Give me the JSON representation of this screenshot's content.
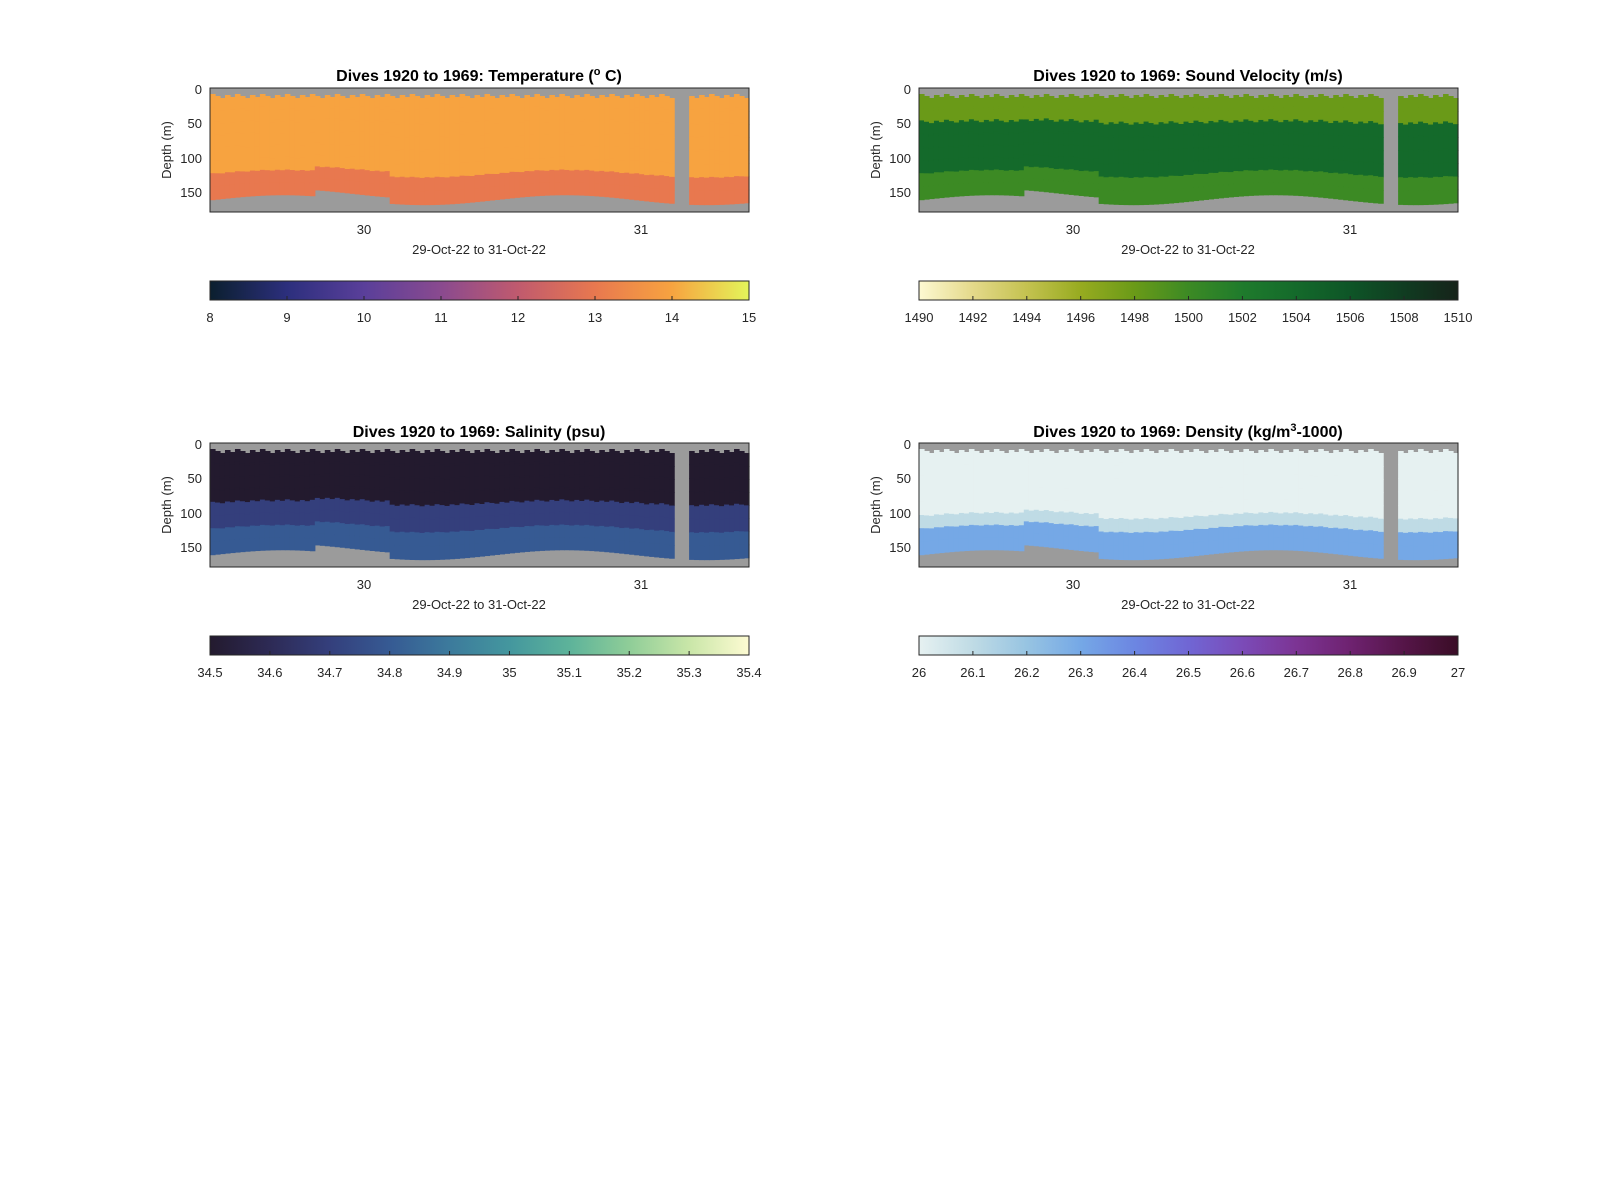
{
  "figure": {
    "panels": [
      {
        "id": "temperature",
        "title": "Dives 1920 to 1969: Temperature (",
        "title_sup": "o",
        "title_tail": " C)",
        "ylabel": "Depth (m)",
        "xlabel": "29-Oct-22 to 31-Oct-22",
        "xticks": [
          "30",
          "31"
        ],
        "yticks": [
          "0",
          "50",
          "100",
          "150"
        ],
        "colorbar_ticks": [
          "8",
          "9",
          "10",
          "11",
          "12",
          "13",
          "14",
          "15"
        ],
        "colormap": [
          "#0b1f2e",
          "#2c2f7d",
          "#5a3f9a",
          "#8a4a8f",
          "#c05a6e",
          "#e8784f",
          "#f7a340",
          "#e3f55a"
        ],
        "nan_color": "#9b9b9b",
        "fill_color": "#f59d43"
      },
      {
        "id": "sound-velocity",
        "title": "Dives 1920 to 1969: Sound Velocity (m/s)",
        "title_sup": "",
        "title_tail": "",
        "ylabel": "Depth (m)",
        "xlabel": "29-Oct-22 to 31-Oct-22",
        "xticks": [
          "30",
          "31"
        ],
        "yticks": [
          "0",
          "50",
          "100",
          "150"
        ],
        "colorbar_ticks": [
          "1490",
          "1492",
          "1494",
          "1496",
          "1498",
          "1500",
          "1502",
          "1504",
          "1506",
          "1508",
          "1510"
        ],
        "colormap": [
          "#fdf9d2",
          "#e4d98a",
          "#c4c250",
          "#97ab20",
          "#6a9a18",
          "#3c8a24",
          "#1f7b2c",
          "#146a2b",
          "#0e5527",
          "#103c21",
          "#16231a"
        ],
        "nan_color": "#9b9b9b",
        "fill_color": "#2f7f26"
      },
      {
        "id": "salinity",
        "title": "Dives 1920 to 1969: Salinity (psu)",
        "title_sup": "",
        "title_tail": "",
        "ylabel": "Depth (m)",
        "xlabel": "29-Oct-22 to 31-Oct-22",
        "xticks": [
          "30",
          "31"
        ],
        "yticks": [
          "0",
          "50",
          "100",
          "150"
        ],
        "colorbar_ticks": [
          "34.5",
          "34.6",
          "34.7",
          "34.8",
          "34.9",
          "35",
          "35.1",
          "35.2",
          "35.3",
          "35.4"
        ],
        "colormap": [
          "#231a2e",
          "#2d2a55",
          "#343f7c",
          "#365a93",
          "#3c7a9c",
          "#44979e",
          "#5db39a",
          "#8fcd98",
          "#c9e6a8",
          "#fdfbd2"
        ],
        "nan_color": "#9b9b9b",
        "fill_color": "#2e2c5c"
      },
      {
        "id": "density",
        "title": "Dives 1920 to 1969: Density (kg/m",
        "title_sup": "3",
        "title_tail": "-1000)",
        "ylabel": "Depth (m)",
        "xlabel": "29-Oct-22 to 31-Oct-22",
        "xticks": [
          "30",
          "31"
        ],
        "yticks": [
          "0",
          "50",
          "100",
          "150"
        ],
        "colorbar_ticks": [
          "26",
          "26.1",
          "26.2",
          "26.3",
          "26.4",
          "26.5",
          "26.6",
          "26.7",
          "26.8",
          "26.9",
          "27"
        ],
        "colormap": [
          "#e6f1f1",
          "#bfdbe5",
          "#97c4e2",
          "#75a8e6",
          "#6c86e2",
          "#7066d4",
          "#7b4bb8",
          "#7c3494",
          "#6e2270",
          "#551548",
          "#3a0d26"
        ],
        "nan_color": "#9b9b9b",
        "fill_color": "#d9ebef"
      }
    ]
  },
  "chart_data": [
    {
      "type": "heatmap",
      "title": "Dives 1920 to 1969: Temperature (o C)",
      "xlabel": "29-Oct-22 to 31-Oct-22",
      "ylabel": "Depth (m)",
      "xticks": [
        "30",
        "31"
      ],
      "yticks": [
        0,
        50,
        100,
        150
      ],
      "ylim": [
        0,
        180
      ],
      "y_reversed": true,
      "colorbar": {
        "range": [
          8,
          15
        ],
        "ticks": [
          8,
          9,
          10,
          11,
          12,
          13,
          14,
          15
        ],
        "placement": "below"
      },
      "dominant_value": 13.8
    },
    {
      "type": "heatmap",
      "title": "Dives 1920 to 1969: Sound Velocity (m/s)",
      "xlabel": "29-Oct-22 to 31-Oct-22",
      "ylabel": "Depth (m)",
      "xticks": [
        "30",
        "31"
      ],
      "yticks": [
        0,
        50,
        100,
        150
      ],
      "ylim": [
        0,
        180
      ],
      "y_reversed": true,
      "colorbar": {
        "range": [
          1490,
          1510
        ],
        "ticks": [
          1490,
          1492,
          1494,
          1496,
          1498,
          1500,
          1502,
          1504,
          1506,
          1508,
          1510
        ],
        "placement": "below"
      },
      "dominant_value": 1503
    },
    {
      "type": "heatmap",
      "title": "Dives 1920 to 1969: Salinity (psu)",
      "xlabel": "29-Oct-22 to 31-Oct-22",
      "ylabel": "Depth (m)",
      "xticks": [
        "30",
        "31"
      ],
      "yticks": [
        0,
        50,
        100,
        150
      ],
      "ylim": [
        0,
        180
      ],
      "y_reversed": true,
      "colorbar": {
        "range": [
          34.5,
          35.4
        ],
        "ticks": [
          34.5,
          34.6,
          34.7,
          34.8,
          34.9,
          35,
          35.1,
          35.2,
          35.3,
          35.4
        ],
        "placement": "below"
      },
      "dominant_value": 34.65
    },
    {
      "type": "heatmap",
      "title": "Dives 1920 to 1969: Density (kg/m3-1000)",
      "xlabel": "29-Oct-22 to 31-Oct-22",
      "ylabel": "Depth (m)",
      "xticks": [
        "30",
        "31"
      ],
      "yticks": [
        0,
        50,
        100,
        150
      ],
      "ylim": [
        0,
        180
      ],
      "y_reversed": true,
      "colorbar": {
        "range": [
          26,
          27
        ],
        "ticks": [
          26,
          26.1,
          26.2,
          26.3,
          26.4,
          26.5,
          26.6,
          26.7,
          26.8,
          26.9,
          27
        ],
        "placement": "below"
      },
      "dominant_value": 26.05
    }
  ]
}
